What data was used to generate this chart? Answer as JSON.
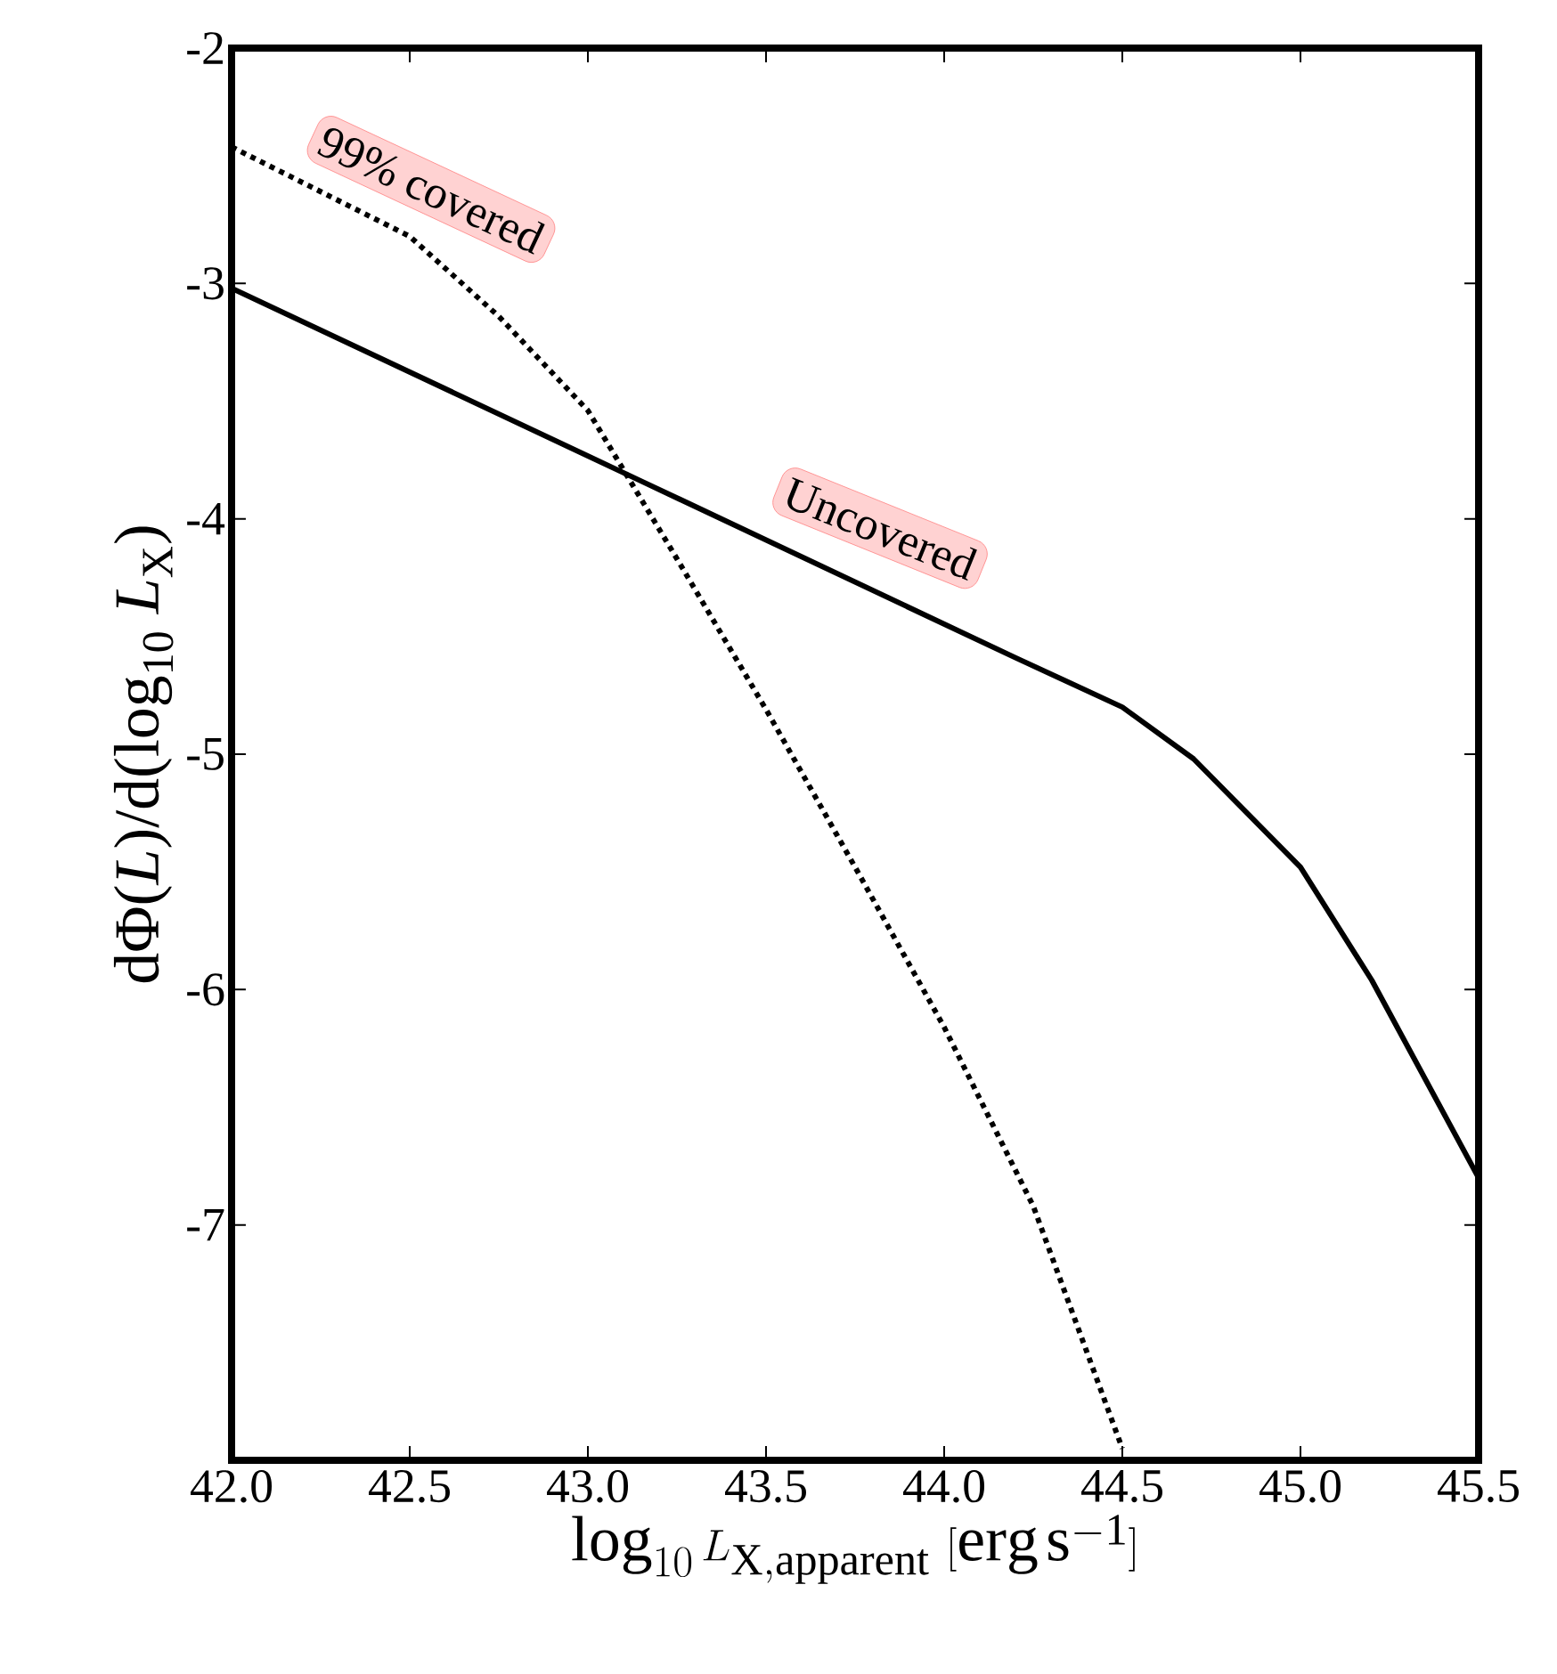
{
  "chart_data": {
    "type": "line",
    "xlabel": "\\log_{10} L_{\\mathrm{X,apparent}}\\ [\\mathrm{erg\\,s^{-1}}]",
    "ylabel": "dΦ(*L*)/d(log$_{10}$ *L*$_{X}$)",
    "xlim": [
      42.0,
      45.5
    ],
    "ylim": [
      -8,
      -2
    ],
    "xticks": [
      {
        "value": 42.0,
        "label": "42.0"
      },
      {
        "value": 42.5,
        "label": "42.5"
      },
      {
        "value": 43.0,
        "label": "43.0"
      },
      {
        "value": 43.5,
        "label": "43.5"
      },
      {
        "value": 44.0,
        "label": "44.0"
      },
      {
        "value": 44.5,
        "label": "44.5"
      },
      {
        "value": 45.0,
        "label": "45.0"
      },
      {
        "value": 45.5,
        "label": "45.5"
      }
    ],
    "yticks": [
      -7,
      -6,
      -5,
      -4,
      -3,
      -2
    ],
    "series": [
      {
        "color": "#000000",
        "line_style": "solid",
        "x": [
          42.0,
          43.15,
          44.2,
          44.5,
          44.7,
          45.0,
          45.2,
          45.5
        ],
        "values": [
          -3.02,
          -3.84,
          -4.59,
          -4.8,
          -5.02,
          -5.48,
          -5.96,
          -6.8
        ]
      },
      {
        "color": "#000000",
        "line_style": "dotted",
        "x": [
          42.0,
          42.25,
          42.5,
          42.75,
          43.0,
          43.25,
          43.5,
          43.75,
          44.0,
          44.25,
          44.5
        ],
        "values": [
          -2.42,
          -2.61,
          -2.8,
          -3.14,
          -3.54,
          -4.17,
          -4.81,
          -5.48,
          -6.16,
          -6.92,
          -7.95
        ]
      }
    ],
    "annotations": [
      "99% covered",
      "Uncovered"
    ]
  }
}
